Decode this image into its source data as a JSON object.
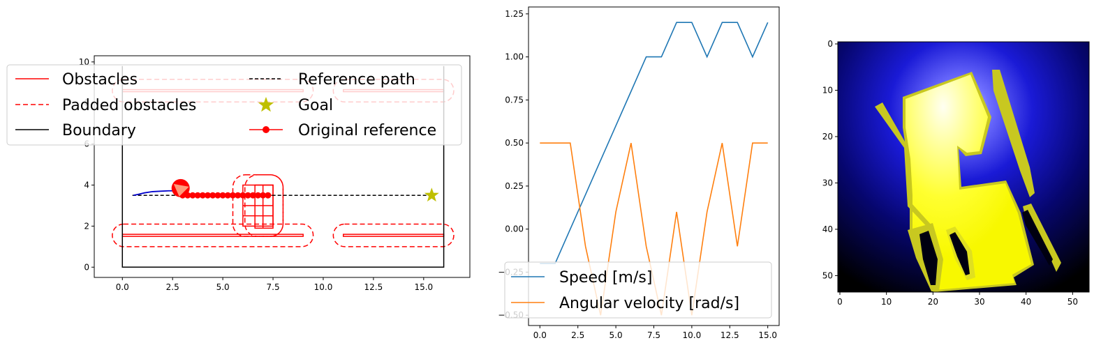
{
  "chart_data": [
    {
      "type": "line",
      "panel": "map",
      "xlim": [
        -1.4,
        17.3
      ],
      "ylim": [
        -0.5,
        10.3
      ],
      "x_ticks": [
        0.0,
        2.5,
        5.0,
        7.5,
        10.0,
        12.5,
        15.0
      ],
      "x_tick_labels": [
        "0.0",
        "2.5",
        "5.0",
        "7.5",
        "10.0",
        "12.5",
        "15.0"
      ],
      "y_ticks": [
        0,
        2,
        4,
        6,
        8,
        10
      ],
      "y_tick_labels": [
        "0",
        "2",
        "4",
        "6",
        "8",
        "10"
      ],
      "boundary": [
        [
          0,
          0
        ],
        [
          16,
          0
        ],
        [
          16,
          9.8
        ],
        [
          0,
          9.8
        ]
      ],
      "obstacles": [
        {
          "x0": 0,
          "x1": 9,
          "y0": 1.5,
          "y1": 1.6
        },
        {
          "x0": 11,
          "x1": 16,
          "y0": 1.5,
          "y1": 1.6
        },
        {
          "x0": 0,
          "x1": 9,
          "y0": 8.55,
          "y1": 8.65
        },
        {
          "x0": 11,
          "x1": 16,
          "y0": 8.55,
          "y1": 8.65
        },
        {
          "x0": 6,
          "x1": 7.5,
          "y0": 2.0,
          "y1": 4.0
        },
        {
          "x0": 6.6,
          "x1": 7.5,
          "y0": 1.9,
          "y1": 4.0
        }
      ],
      "padded_obstacles": [
        {
          "x0": -0.5,
          "x1": 9.5,
          "y0": 1.0,
          "y1": 2.1
        },
        {
          "x0": 10.5,
          "x1": 16.5,
          "y0": 1.0,
          "y1": 2.1
        },
        {
          "x0": -0.5,
          "x1": 9.5,
          "y0": 8.05,
          "y1": 9.15
        },
        {
          "x0": 10.5,
          "x1": 16.5,
          "y0": 8.05,
          "y1": 9.15
        },
        {
          "x0": 5.5,
          "x1": 8.0,
          "y0": 1.5,
          "y1": 4.5
        },
        {
          "x0": 6.1,
          "x1": 8.0,
          "y0": 1.5,
          "y1": 4.5
        }
      ],
      "reference_path": {
        "x": [
          0.5,
          15.5
        ],
        "y": [
          3.5,
          3.5
        ]
      },
      "goal": {
        "x": 15.4,
        "y": 3.5
      },
      "original_reference": {
        "x": [
          3.0,
          3.25,
          3.5,
          3.75,
          4.0,
          4.25,
          4.5,
          4.75,
          5.0,
          5.25,
          5.5,
          5.75,
          6.0,
          6.25,
          6.5,
          6.75,
          7.0,
          7.25
        ],
        "y": [
          3.5,
          3.5,
          3.5,
          3.5,
          3.5,
          3.5,
          3.5,
          3.5,
          3.5,
          3.5,
          3.5,
          3.5,
          3.5,
          3.5,
          3.5,
          3.5,
          3.5,
          3.5
        ]
      },
      "trajectory": {
        "x": [
          0.55,
          0.8,
          1.1,
          1.5,
          1.9,
          2.3,
          2.6,
          2.9
        ],
        "y": [
          3.5,
          3.55,
          3.62,
          3.68,
          3.7,
          3.72,
          3.72,
          3.75
        ]
      },
      "robot": {
        "x": 2.9,
        "y": 3.85
      },
      "legend": {
        "placement": "upper-left",
        "entries": [
          {
            "label": "Obstacles",
            "style": "solid",
            "color": "#ff0000"
          },
          {
            "label": "Padded obstacles",
            "style": "dashed",
            "color": "#ff0000"
          },
          {
            "label": "Boundary",
            "style": "solid",
            "color": "#000000"
          },
          {
            "label": "Reference path",
            "style": "dashed",
            "color": "#000000"
          },
          {
            "label": "Goal",
            "style": "star",
            "color": "#bfbf00"
          },
          {
            "label": "Original reference",
            "style": "line-marker",
            "color": "#ff0000"
          }
        ]
      }
    },
    {
      "type": "line",
      "panel": "commands",
      "xlim": [
        -0.75,
        15.75
      ],
      "ylim": [
        -0.56,
        1.29
      ],
      "x_ticks": [
        0.0,
        2.5,
        5.0,
        7.5,
        10.0,
        12.5,
        15.0
      ],
      "x_tick_labels": [
        "0.0",
        "2.5",
        "5.0",
        "7.5",
        "10.0",
        "12.5",
        "15.0"
      ],
      "y_ticks": [
        -0.5,
        -0.25,
        0.0,
        0.25,
        0.5,
        0.75,
        1.0,
        1.25
      ],
      "y_tick_labels": [
        "−0.50",
        "−0.25",
        "0.00",
        "0.25",
        "0.50",
        "0.75",
        "1.00",
        "1.25"
      ],
      "x": [
        0,
        1,
        2,
        3,
        4,
        5,
        6,
        7,
        8,
        9,
        10,
        11,
        12,
        13,
        14,
        15
      ],
      "series": [
        {
          "name": "Speed [m/s]",
          "color": "#1f77b4",
          "values": [
            -0.2,
            -0.2,
            0.0,
            0.2,
            0.4,
            0.6,
            0.8,
            1.0,
            1.0,
            1.2,
            1.2,
            1.0,
            1.2,
            1.2,
            1.0,
            1.2
          ]
        },
        {
          "name": "Angular velocity [rad/s]",
          "color": "#ff7f0e",
          "values": [
            0.5,
            0.5,
            0.5,
            -0.1,
            -0.5,
            0.1,
            0.5,
            -0.1,
            -0.5,
            0.1,
            -0.5,
            0.1,
            0.5,
            -0.1,
            0.5,
            0.5
          ]
        }
      ],
      "legend": {
        "placement": "lower-left"
      }
    },
    {
      "type": "heatmap",
      "panel": "image",
      "xlim": [
        0,
        54
      ],
      "ylim": [
        54,
        0
      ],
      "x_ticks": [
        0,
        10,
        20,
        30,
        40,
        50
      ],
      "x_tick_labels": [
        "0",
        "10",
        "20",
        "30",
        "40",
        "50"
      ],
      "y_ticks": [
        0,
        10,
        20,
        30,
        40,
        50
      ],
      "y_tick_labels": [
        "0",
        "10",
        "20",
        "30",
        "40",
        "50"
      ],
      "colors": {
        "background": "#000000",
        "glow": "#0000ff",
        "free": "#ffff22",
        "edge": "#bfbf22"
      }
    }
  ]
}
